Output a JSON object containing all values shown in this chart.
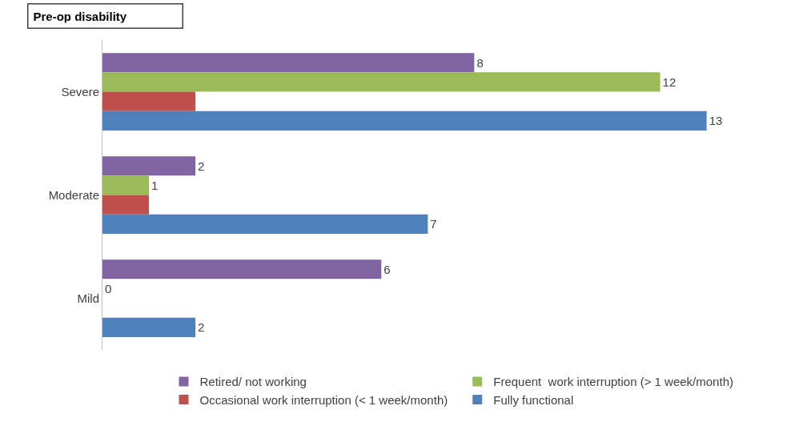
{
  "chart_data": {
    "type": "bar",
    "orientation": "horizontal",
    "title": "Pre-op disability",
    "categories": [
      "Severe",
      "Moderate",
      "Mild"
    ],
    "series": [
      {
        "name": "Retired/ not working",
        "color": "#8064a2",
        "values": [
          8,
          2,
          6
        ],
        "value_labels": [
          "8",
          "2",
          "6"
        ]
      },
      {
        "name": "Frequent  work interruption (> 1 week/month)",
        "color": "#9bbb59",
        "values": [
          12,
          1,
          0
        ],
        "value_labels": [
          "12",
          "1",
          "0"
        ]
      },
      {
        "name": "Occasional work interruption (< 1 week/month)",
        "color": "#c0504d",
        "values": [
          2,
          1,
          null
        ],
        "value_labels": [
          null,
          null,
          null
        ]
      },
      {
        "name": "Fully functional",
        "color": "#4f81bd",
        "values": [
          13,
          7,
          2
        ],
        "value_labels": [
          "13",
          "7",
          "2"
        ]
      }
    ],
    "grid": false,
    "legend": "bottom"
  }
}
